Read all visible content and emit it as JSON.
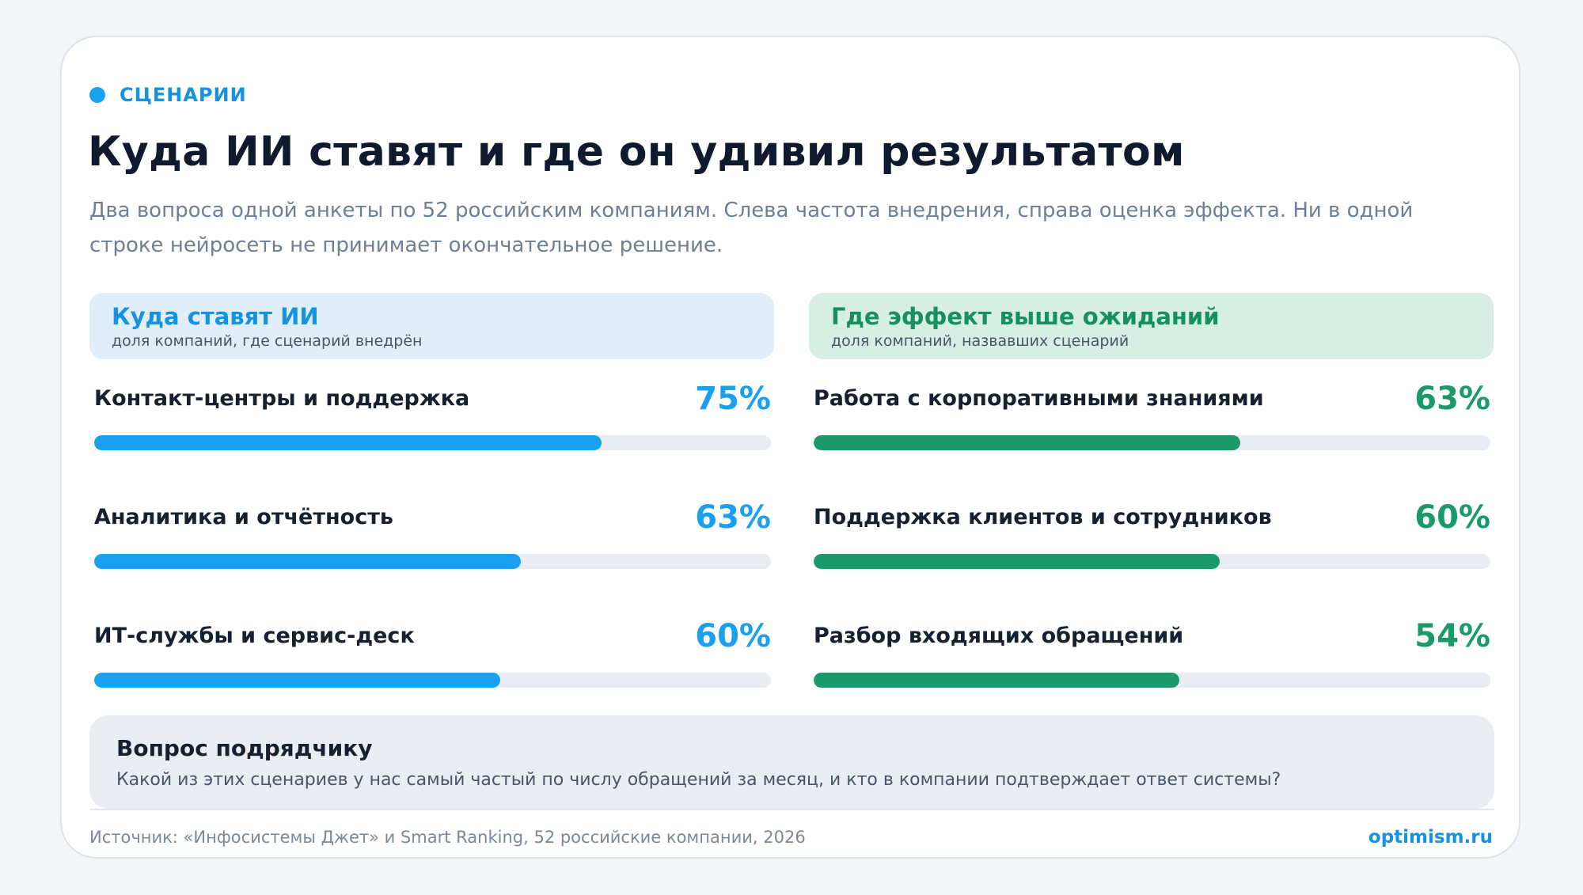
{
  "eyebrow": "СЦЕНАРИИ",
  "title": "Куда ИИ ставят и где он удивил результатом",
  "subtitle": "Два вопроса одной анкеты по 52 российским компаниям. Слева частота внедрения, справа оценка эффекта. Ни в одной строке нейросеть не принимает окончательное решение.",
  "chart_data": [
    {
      "type": "bar",
      "orientation": "horizontal",
      "title": "Куда ставят ИИ",
      "subtitle": "доля компаний, где сценарий внедрён",
      "color": "#1aa0f0",
      "xlim": [
        0,
        100
      ],
      "categories": [
        "Контакт-центры и поддержка",
        "Аналитика и отчётность",
        "ИТ-службы и сервис-деск"
      ],
      "values": [
        75,
        63,
        60
      ],
      "value_labels": [
        "75%",
        "63%",
        "60%"
      ]
    },
    {
      "type": "bar",
      "orientation": "horizontal",
      "title": "Где эффект выше ожиданий",
      "subtitle": "доля компаний, назвавших сценарий",
      "color": "#1a9a6a",
      "xlim": [
        0,
        100
      ],
      "categories": [
        "Работа с корпоративными знаниями",
        "Поддержка клиентов и сотрудников",
        "Разбор входящих обращений"
      ],
      "values": [
        63,
        60,
        54
      ],
      "value_labels": [
        "63%",
        "60%",
        "54%"
      ]
    }
  ],
  "note": {
    "title": "Вопрос подрядчику",
    "text": "Какой из этих сценариев у нас самый частый по числу обращений за месяц, и кто в компании подтверждает ответ системы?"
  },
  "footer": {
    "source": "Источник: «Инфосистемы Джет» и Smart Ranking, 52 российские компании, 2026",
    "brand": "optimism.ru"
  }
}
